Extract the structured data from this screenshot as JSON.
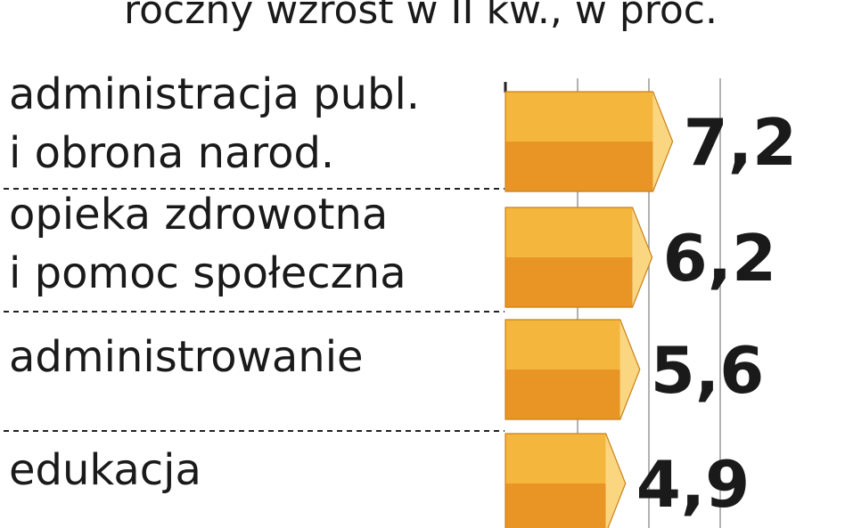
{
  "chart_data": {
    "type": "bar",
    "orientation": "horizontal",
    "title": "roczny wzrost w II kw., w proc.",
    "categories": [
      [
        "administracja publ.",
        "i obrona narod."
      ],
      [
        "opieka zdrowotna",
        "i pomoc społeczna"
      ],
      [
        "administrowanie"
      ],
      [
        "edukacja"
      ]
    ],
    "values": [
      7.2,
      6.2,
      5.6,
      4.9
    ],
    "value_labels": [
      "7,2",
      "6,2",
      "5,6",
      "4,9"
    ],
    "highlight_index": 0,
    "grid": true,
    "colors": {
      "bar_top": "#f4b63c",
      "bar_bottom": "#e89525",
      "bar_side": "#fbd680",
      "highlight_value": "#c81f3c",
      "value_text": "#1a1a1a",
      "grid": "#999999",
      "separator": "#222222"
    }
  }
}
